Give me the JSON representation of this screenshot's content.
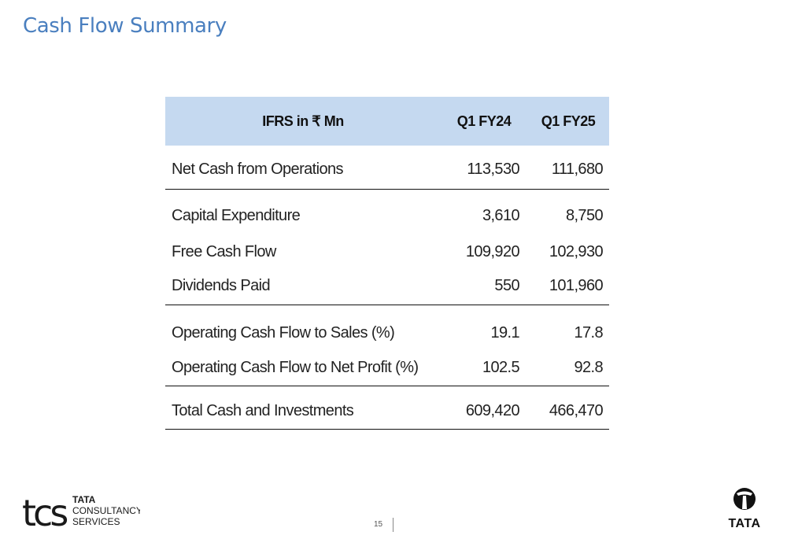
{
  "title": "Cash Flow Summary",
  "table": {
    "headers": [
      "IFRS in ₹ Mn",
      "Q1 FY24",
      "Q1 FY25"
    ],
    "groups": [
      [
        {
          "label": "Net Cash from Operations",
          "q1fy24": "113,530",
          "q1fy25": "111,680"
        }
      ],
      [
        {
          "label": "Capital Expenditure",
          "q1fy24": "3,610",
          "q1fy25": "8,750"
        },
        {
          "label": "Free Cash Flow",
          "q1fy24": "109,920",
          "q1fy25": "102,930"
        },
        {
          "label": "Dividends Paid",
          "q1fy24": "550",
          "q1fy25": "101,960"
        }
      ],
      [
        {
          "label": "Operating Cash Flow to Sales (%)",
          "q1fy24": "19.1",
          "q1fy25": "17.8"
        },
        {
          "label": "Operating Cash Flow to Net Profit (%)",
          "q1fy24": "102.5",
          "q1fy25": "92.8"
        }
      ],
      [
        {
          "label": "Total Cash and Investments",
          "q1fy24": "609,420",
          "q1fy25": "466,470"
        }
      ]
    ]
  },
  "footer": {
    "page_number": "15",
    "tcs_logo_text": [
      "tcs",
      "TATA",
      "CONSULTANCY",
      "SERVICES"
    ],
    "tata_logo_text": "TATA"
  }
}
